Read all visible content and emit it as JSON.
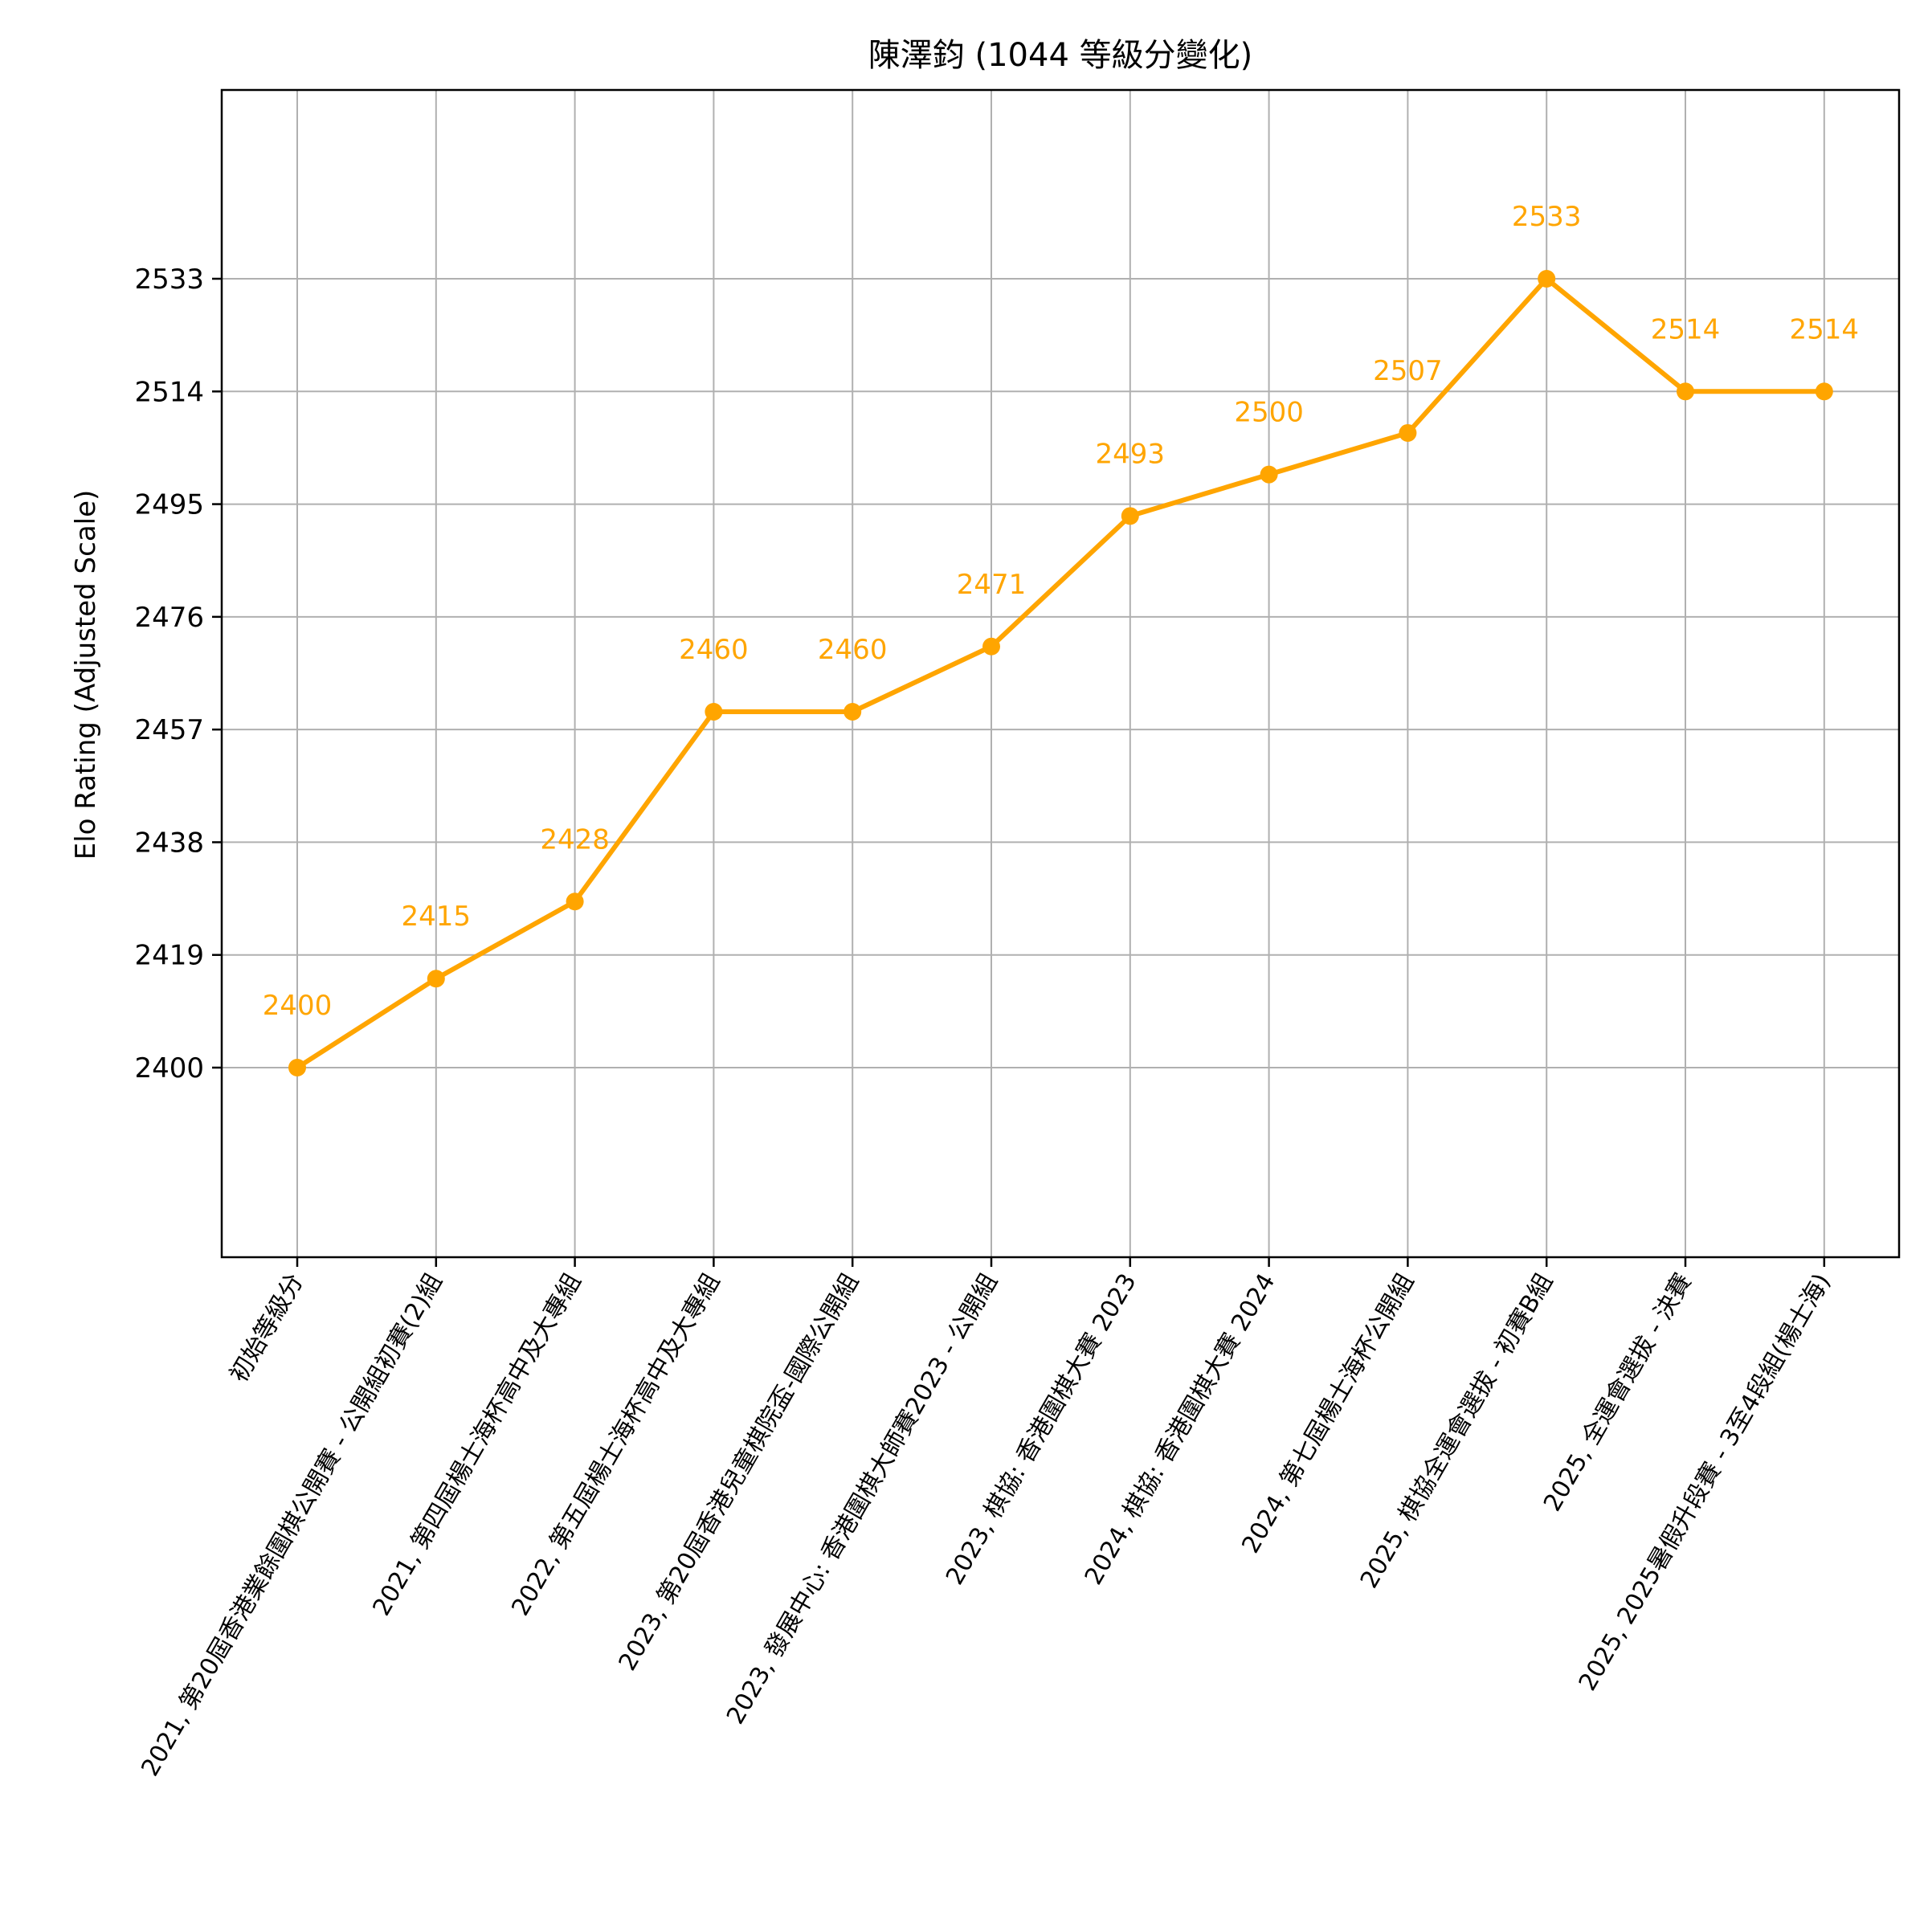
{
  "chart_data": {
    "type": "line",
    "title": "陳澤鈞 (1044 等級分變化)",
    "xlabel": "",
    "ylabel": "Elo Rating (Adjusted Scale)",
    "categories": [
      "初始等級分",
      "2021, 第20屆香港業餘圍棋公開賽 - 公開組初賽(2)組",
      "2021, 第四屆楊士海杯高中及大專組",
      "2022, 第五屆楊士海杯高中及大專組",
      "2023, 第20屆香港兒童棋院盃-國際公開組",
      "2023, 發展中心: 香港圍棋大師賽2023 - 公開組",
      "2023, 棋協: 香港圍棋大賽 2023",
      "2024, 棋協: 香港圍棋大賽 2024",
      "2024, 第七屆楊士海杯公開組",
      "2025, 棋協全運會選拔 - 初賽B組",
      "2025, 全運會選拔 - 決賽",
      "2025, 2025暑假升段賽 - 3至4段組(楊士海)"
    ],
    "values": [
      2400,
      2415,
      2428,
      2460,
      2460,
      2471,
      2493,
      2500,
      2507,
      2533,
      2514,
      2514
    ],
    "data_labels": [
      "2400",
      "2415",
      "2428",
      "2460",
      "2460",
      "2471",
      "2493",
      "2500",
      "2507",
      "2533",
      "2514",
      "2514"
    ],
    "yticks": [
      "2400",
      "2419",
      "2438",
      "2457",
      "2476",
      "2495",
      "2514",
      "2533"
    ],
    "grid": true,
    "color": "#FFA500"
  }
}
